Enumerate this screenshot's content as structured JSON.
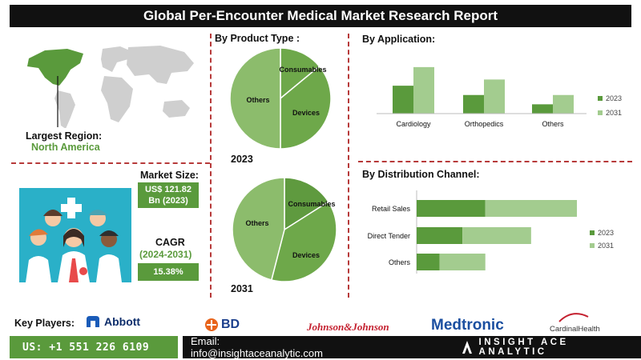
{
  "title": "Global Per-Encounter Medical Market Research Report",
  "region": {
    "label": "Largest Region:",
    "value": "North America"
  },
  "market_size": {
    "label": "Market Size:",
    "line1": "US$ 121.82",
    "line2": "Bn (2023)"
  },
  "cagr": {
    "label": "CAGR",
    "period": "(2024-2031)",
    "value": "15.38%"
  },
  "product_type": {
    "heading": "By  Product Type :",
    "year_a": "2023",
    "year_b": "2031"
  },
  "application": {
    "heading": "By Application:"
  },
  "distribution": {
    "heading": "By Distribution Channel:"
  },
  "key_players": {
    "label": "Key Players:",
    "companies": [
      "Abbott",
      "BD",
      "Johnson&Johnson",
      "Medtronic",
      "CardinalHealth"
    ]
  },
  "contact": {
    "phone": "US: +1 551 226 6109",
    "email": "Email: info@insightaceanalytic.com"
  },
  "brand": "INSIGHT ACE ANALYTIC",
  "colors": {
    "dark_green": "#5a9a3c",
    "light_green": "#a3cc8f",
    "pie_green": "#8cbc6c",
    "red_dash": "#b73a3a"
  },
  "chart_data": [
    {
      "type": "pie",
      "title": "2023",
      "labels": [
        "Consumables",
        "Devices",
        "Others"
      ],
      "values": [
        14,
        36,
        50
      ]
    },
    {
      "type": "pie",
      "title": "2031",
      "labels": [
        "Consumables",
        "Devices",
        "Others"
      ],
      "values": [
        16,
        38,
        46
      ]
    },
    {
      "type": "bar",
      "title": "By Application:",
      "categories": [
        "Cardiology",
        "Orthopedics",
        "Others"
      ],
      "series": [
        {
          "name": "2023",
          "values": [
            4.5,
            3.0,
            1.5
          ]
        },
        {
          "name": "2031",
          "values": [
            7.5,
            5.5,
            3.0
          ]
        }
      ],
      "ylim": [
        0,
        8
      ],
      "legend": "right"
    },
    {
      "type": "bar",
      "orientation": "horizontal",
      "stacked": true,
      "title": "By Distribution Channel:",
      "categories": [
        "Retail Sales",
        "Direct Tender",
        "Others"
      ],
      "series": [
        {
          "name": "2023",
          "values": [
            6,
            4,
            2
          ]
        },
        {
          "name": "2031",
          "values": [
            8,
            6,
            4
          ]
        }
      ],
      "xlim": [
        0,
        14
      ],
      "legend": "right"
    }
  ]
}
